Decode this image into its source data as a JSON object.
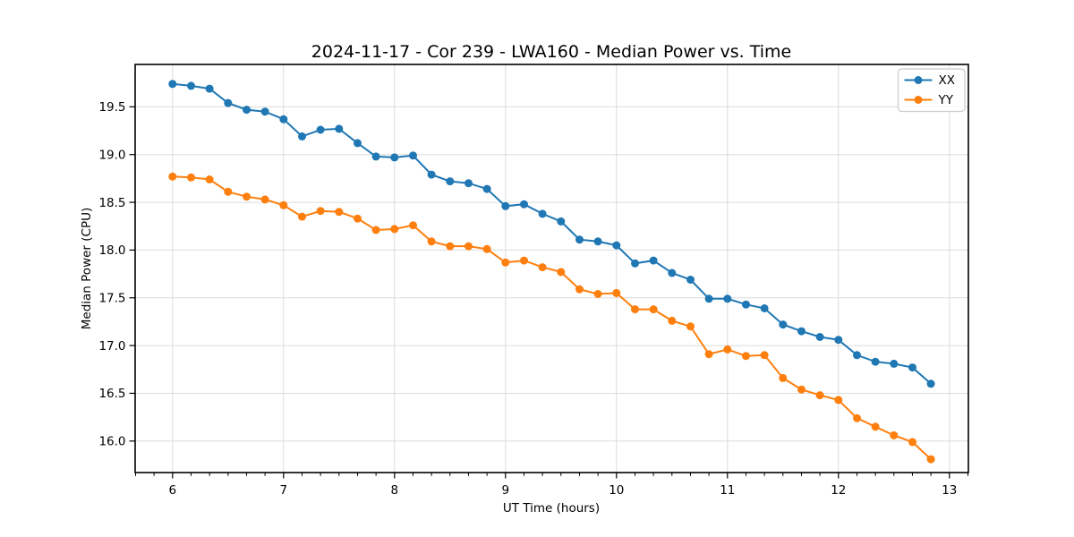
{
  "chart_data": {
    "type": "line",
    "title": "2024-11-17 - Cor 239 - LWA160 - Median Power vs. Time",
    "xlabel": "UT Time (hours)",
    "ylabel": "Median Power (CPU)",
    "xlim": [
      5.663,
      13.171
    ],
    "ylim": [
      15.67,
      19.944
    ],
    "xticks": [
      6,
      7,
      8,
      9,
      10,
      11,
      12,
      13
    ],
    "yticks": [
      16.0,
      16.5,
      17.0,
      17.5,
      18.0,
      18.5,
      19.0,
      19.5
    ],
    "x_minor_step_minutes": 10,
    "grid": true,
    "legend_position": "upper right",
    "x": [
      6.0,
      6.167,
      6.333,
      6.5,
      6.667,
      6.833,
      7.0,
      7.167,
      7.333,
      7.5,
      7.667,
      7.833,
      8.0,
      8.167,
      8.333,
      8.5,
      8.667,
      8.833,
      9.0,
      9.167,
      9.333,
      9.5,
      9.667,
      9.833,
      10.0,
      10.167,
      10.333,
      10.5,
      10.667,
      10.833,
      11.0,
      11.167,
      11.333,
      11.5,
      11.667,
      11.833,
      12.0,
      12.167,
      12.333,
      12.5,
      12.667,
      12.833
    ],
    "series": [
      {
        "name": "XX",
        "color": "#1f77b4",
        "values": [
          19.74,
          19.72,
          19.69,
          19.54,
          19.47,
          19.45,
          19.37,
          19.19,
          19.26,
          19.27,
          19.12,
          18.98,
          18.97,
          18.99,
          18.79,
          18.72,
          18.7,
          18.64,
          18.46,
          18.48,
          18.38,
          18.3,
          18.11,
          18.09,
          18.05,
          17.86,
          17.89,
          17.76,
          17.69,
          17.49,
          17.49,
          17.43,
          17.39,
          17.22,
          17.15,
          17.09,
          17.06,
          16.9,
          16.83,
          16.81,
          16.77,
          16.6
        ]
      },
      {
        "name": "YY",
        "color": "#ff7f0e",
        "values": [
          18.77,
          18.76,
          18.74,
          18.61,
          18.56,
          18.53,
          18.47,
          18.35,
          18.41,
          18.4,
          18.33,
          18.21,
          18.22,
          18.26,
          18.09,
          18.04,
          18.04,
          18.01,
          17.87,
          17.89,
          17.82,
          17.77,
          17.59,
          17.54,
          17.55,
          17.38,
          17.38,
          17.26,
          17.2,
          16.91,
          16.96,
          16.89,
          16.9,
          16.66,
          16.54,
          16.48,
          16.43,
          16.24,
          16.15,
          16.06,
          15.99,
          15.81
        ]
      }
    ]
  }
}
